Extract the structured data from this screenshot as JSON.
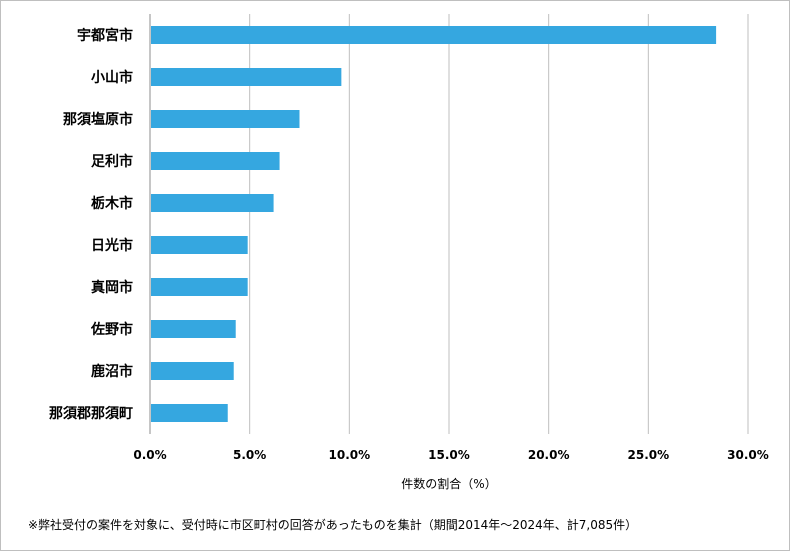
{
  "chart_data": {
    "type": "bar",
    "orientation": "horizontal",
    "categories": [
      "宇都宮市",
      "小山市",
      "那須塩原市",
      "足利市",
      "栃木市",
      "日光市",
      "真岡市",
      "佐野市",
      "鹿沼市",
      "那須郡那須町"
    ],
    "values": [
      28.4,
      9.6,
      7.5,
      6.5,
      6.2,
      4.9,
      4.9,
      4.3,
      4.2,
      3.9
    ],
    "xlim": [
      0,
      30
    ],
    "xticks": [
      "0.0%",
      "5.0%",
      "10.0%",
      "15.0%",
      "20.0%",
      "25.0%",
      "30.0%"
    ],
    "xlabel": "件数の割合（%）",
    "ylabel": "",
    "title": "",
    "grid": "vertical",
    "bar_color": "#35A7E0"
  },
  "footnote": "※弊社受付の案件を対象に、受付時に市区町村の回答があったものを集計（期間2014年～2024年、計7,085件）"
}
